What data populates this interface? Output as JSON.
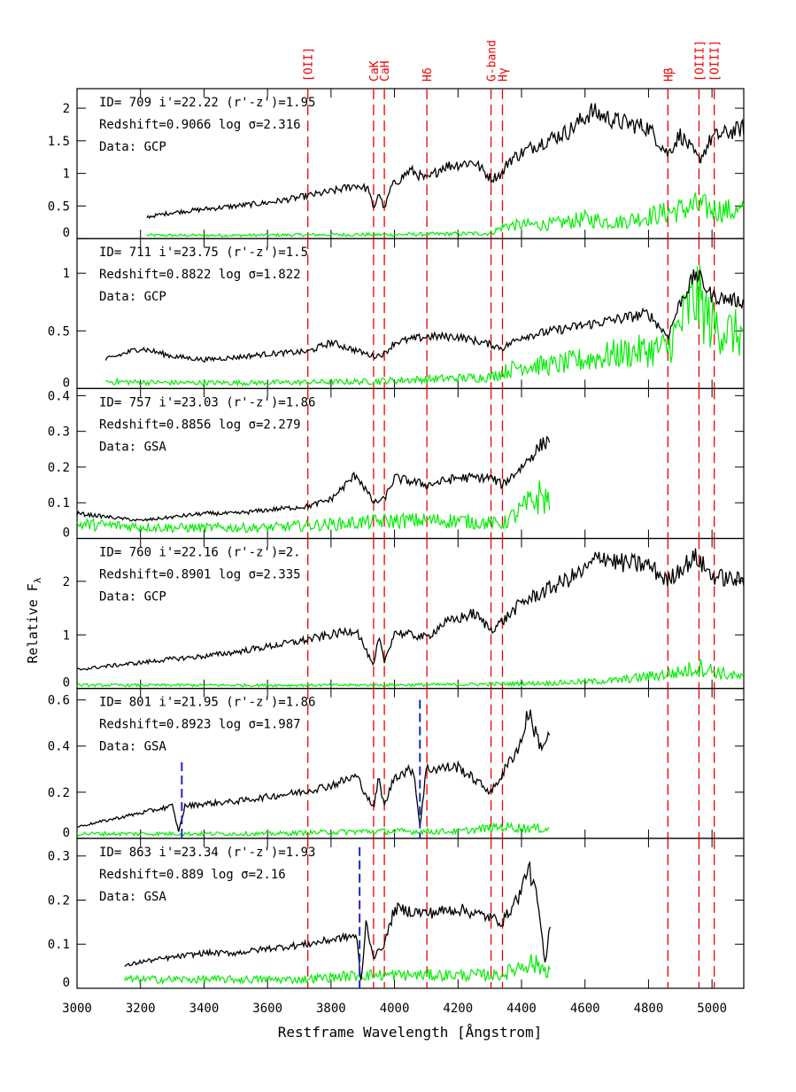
{
  "figure": {
    "ylabel": "Relative F",
    "ylabel_sub": "λ",
    "xlabel": "Restframe Wavelength [Ångstrom]"
  },
  "colors": {
    "spectrum": "#000000",
    "noise": "#00ee00",
    "lines": "#ee0000",
    "masked": "#2222cc",
    "frame": "#000000"
  },
  "chart_data": {
    "type": "line",
    "xlim": [
      3000,
      5100
    ],
    "x_ticks": [
      3000,
      3200,
      3400,
      3600,
      3800,
      4000,
      4200,
      4400,
      4600,
      4800,
      5000
    ],
    "x_tick_labels": [
      "3000",
      "3200",
      "3400",
      "3600",
      "3800",
      "4000",
      "4200",
      "4400",
      "4600",
      "4800",
      "5000"
    ],
    "lines": [
      {
        "label": "[OII]",
        "x": 3727
      },
      {
        "label": "CaK",
        "x": 3934
      },
      {
        "label": "CaH",
        "x": 3968
      },
      {
        "label": "Hδ",
        "x": 4102
      },
      {
        "label": "G-band",
        "x": 4304
      },
      {
        "label": "Hγ",
        "x": 4340
      },
      {
        "label": "Hβ",
        "x": 4861
      },
      {
        "label": "[OIII]",
        "x": 4959
      },
      {
        "label": "[OIII]",
        "x": 5007
      }
    ],
    "panels": [
      {
        "info": [
          "ID= 709   i'=22.22  (r'-z')=1.95",
          "Redshift=0.9066   log σ=2.316",
          "Data: GCP"
        ],
        "ylim": [
          0,
          2.3
        ],
        "yticks": [
          0,
          0.5,
          1,
          1.5,
          2
        ],
        "ytick_labels": [
          "0",
          "0.5",
          "1",
          "1.5",
          "2"
        ],
        "xrange": [
          3220,
          5100
        ],
        "spectrum": [
          [
            3220,
            0.33
          ],
          [
            3300,
            0.4
          ],
          [
            3400,
            0.45
          ],
          [
            3500,
            0.5
          ],
          [
            3600,
            0.55
          ],
          [
            3700,
            0.63
          ],
          [
            3730,
            0.66
          ],
          [
            3800,
            0.72
          ],
          [
            3880,
            0.82
          ],
          [
            3920,
            0.75
          ],
          [
            3934,
            0.42
          ],
          [
            3950,
            0.72
          ],
          [
            3968,
            0.45
          ],
          [
            3990,
            0.8
          ],
          [
            4050,
            1.05
          ],
          [
            4102,
            0.9
          ],
          [
            4150,
            1.1
          ],
          [
            4250,
            1.18
          ],
          [
            4304,
            0.92
          ],
          [
            4340,
            1.0
          ],
          [
            4360,
            1.2
          ],
          [
            4450,
            1.45
          ],
          [
            4550,
            1.65
          ],
          [
            4620,
            1.95
          ],
          [
            4700,
            1.8
          ],
          [
            4800,
            1.7
          ],
          [
            4861,
            1.3
          ],
          [
            4900,
            1.6
          ],
          [
            4959,
            1.2
          ],
          [
            5000,
            1.55
          ],
          [
            5100,
            1.7
          ]
        ],
        "noise": [
          [
            3220,
            0.05
          ],
          [
            3500,
            0.05
          ],
          [
            3800,
            0.06
          ],
          [
            4000,
            0.06
          ],
          [
            4300,
            0.08
          ],
          [
            4350,
            0.2
          ],
          [
            4500,
            0.22
          ],
          [
            4600,
            0.3
          ],
          [
            4700,
            0.25
          ],
          [
            4861,
            0.4
          ],
          [
            4950,
            0.5
          ],
          [
            5000,
            0.45
          ],
          [
            5100,
            0.4
          ]
        ],
        "masked": []
      },
      {
        "info": [
          "ID= 711   i'=23.75  (r'-z')=1.5",
          "Redshift=0.8822   log σ=1.822",
          "Data: GCP"
        ],
        "ylim": [
          0,
          1.3
        ],
        "yticks": [
          0,
          0.5,
          1
        ],
        "ytick_labels": [
          "0",
          "0.5",
          "1"
        ],
        "xrange": [
          3090,
          5100
        ],
        "spectrum": [
          [
            3090,
            0.25
          ],
          [
            3200,
            0.35
          ],
          [
            3300,
            0.28
          ],
          [
            3400,
            0.25
          ],
          [
            3500,
            0.27
          ],
          [
            3600,
            0.3
          ],
          [
            3727,
            0.32
          ],
          [
            3800,
            0.4
          ],
          [
            3934,
            0.28
          ],
          [
            3968,
            0.3
          ],
          [
            4000,
            0.4
          ],
          [
            4102,
            0.45
          ],
          [
            4200,
            0.45
          ],
          [
            4304,
            0.38
          ],
          [
            4340,
            0.35
          ],
          [
            4400,
            0.45
          ],
          [
            4500,
            0.5
          ],
          [
            4600,
            0.55
          ],
          [
            4700,
            0.6
          ],
          [
            4800,
            0.65
          ],
          [
            4861,
            0.45
          ],
          [
            4900,
            0.75
          ],
          [
            4950,
            1.0
          ],
          [
            5000,
            0.8
          ],
          [
            5100,
            0.75
          ]
        ],
        "noise": [
          [
            3090,
            0.06
          ],
          [
            3300,
            0.05
          ],
          [
            3600,
            0.05
          ],
          [
            3900,
            0.06
          ],
          [
            4100,
            0.08
          ],
          [
            4300,
            0.1
          ],
          [
            4400,
            0.2
          ],
          [
            4500,
            0.2
          ],
          [
            4600,
            0.25
          ],
          [
            4700,
            0.3
          ],
          [
            4861,
            0.35
          ],
          [
            4950,
            0.8
          ],
          [
            5000,
            0.55
          ],
          [
            5100,
            0.45
          ]
        ],
        "masked": []
      },
      {
        "info": [
          "ID= 757   i'=23.03  (r'-z')=1.86",
          "Redshift=0.8856   log σ=2.279",
          "Data: GSA"
        ],
        "ylim": [
          0,
          0.42
        ],
        "yticks": [
          0,
          0.1,
          0.2,
          0.3,
          0.4
        ],
        "ytick_labels": [
          "0",
          "0.1",
          "0.2",
          "0.3",
          "0.4"
        ],
        "xrange": [
          3000,
          4490
        ],
        "spectrum": [
          [
            3000,
            0.07
          ],
          [
            3100,
            0.06
          ],
          [
            3200,
            0.05
          ],
          [
            3300,
            0.06
          ],
          [
            3400,
            0.07
          ],
          [
            3500,
            0.07
          ],
          [
            3600,
            0.08
          ],
          [
            3727,
            0.09
          ],
          [
            3800,
            0.11
          ],
          [
            3880,
            0.18
          ],
          [
            3934,
            0.1
          ],
          [
            3968,
            0.11
          ],
          [
            4000,
            0.17
          ],
          [
            4102,
            0.15
          ],
          [
            4200,
            0.17
          ],
          [
            4304,
            0.17
          ],
          [
            4340,
            0.15
          ],
          [
            4400,
            0.2
          ],
          [
            4460,
            0.26
          ],
          [
            4490,
            0.28
          ]
        ],
        "noise": [
          [
            3000,
            0.04
          ],
          [
            3300,
            0.03
          ],
          [
            3600,
            0.03
          ],
          [
            3800,
            0.04
          ],
          [
            4000,
            0.05
          ],
          [
            4200,
            0.05
          ],
          [
            4340,
            0.04
          ],
          [
            4400,
            0.08
          ],
          [
            4460,
            0.12
          ],
          [
            4490,
            0.1
          ]
        ],
        "masked": []
      },
      {
        "info": [
          "ID= 760   i'=22.16  (r'-z')=2.",
          "Redshift=0.8901   log σ=2.335",
          "Data: GCP"
        ],
        "ylim": [
          0,
          2.8
        ],
        "yticks": [
          0,
          1,
          2
        ],
        "ytick_labels": [
          "0",
          "1",
          "2"
        ],
        "xrange": [
          3000,
          5100
        ],
        "spectrum": [
          [
            3000,
            0.35
          ],
          [
            3100,
            0.42
          ],
          [
            3200,
            0.48
          ],
          [
            3300,
            0.55
          ],
          [
            3400,
            0.6
          ],
          [
            3500,
            0.68
          ],
          [
            3600,
            0.78
          ],
          [
            3700,
            0.88
          ],
          [
            3800,
            1.0
          ],
          [
            3880,
            1.1
          ],
          [
            3934,
            0.4
          ],
          [
            3950,
            0.95
          ],
          [
            3968,
            0.5
          ],
          [
            4000,
            1.05
          ],
          [
            4102,
            0.95
          ],
          [
            4150,
            1.2
          ],
          [
            4250,
            1.4
          ],
          [
            4304,
            1.1
          ],
          [
            4340,
            1.25
          ],
          [
            4400,
            1.6
          ],
          [
            4500,
            1.9
          ],
          [
            4600,
            2.2
          ],
          [
            4650,
            2.5
          ],
          [
            4700,
            2.35
          ],
          [
            4800,
            2.3
          ],
          [
            4861,
            2.0
          ],
          [
            4900,
            2.25
          ],
          [
            4950,
            2.45
          ],
          [
            5000,
            2.1
          ],
          [
            5100,
            2.0
          ]
        ],
        "noise": [
          [
            3000,
            0.06
          ],
          [
            3400,
            0.06
          ],
          [
            3800,
            0.06
          ],
          [
            4200,
            0.07
          ],
          [
            4500,
            0.1
          ],
          [
            4700,
            0.15
          ],
          [
            4900,
            0.3
          ],
          [
            4960,
            0.4
          ],
          [
            5050,
            0.25
          ],
          [
            5100,
            0.2
          ]
        ],
        "masked": []
      },
      {
        "info": [
          "ID= 801   i'=21.95  (r'-z')=1.86",
          "Redshift=0.8923   log σ=1.987",
          "Data: GSA"
        ],
        "ylim": [
          0,
          0.65
        ],
        "yticks": [
          0,
          0.2,
          0.4,
          0.6
        ],
        "ytick_labels": [
          "0",
          "0.2",
          "0.4",
          "0.6"
        ],
        "xrange": [
          3000,
          4490
        ],
        "spectrum": [
          [
            3000,
            0.05
          ],
          [
            3100,
            0.08
          ],
          [
            3200,
            0.11
          ],
          [
            3300,
            0.14
          ],
          [
            3320,
            0.03
          ],
          [
            3340,
            0.14
          ],
          [
            3400,
            0.15
          ],
          [
            3500,
            0.16
          ],
          [
            3600,
            0.18
          ],
          [
            3700,
            0.2
          ],
          [
            3800,
            0.23
          ],
          [
            3880,
            0.27
          ],
          [
            3934,
            0.13
          ],
          [
            3950,
            0.26
          ],
          [
            3968,
            0.14
          ],
          [
            4000,
            0.27
          ],
          [
            4060,
            0.3
          ],
          [
            4080,
            0.05
          ],
          [
            4100,
            0.3
          ],
          [
            4200,
            0.31
          ],
          [
            4304,
            0.2
          ],
          [
            4340,
            0.28
          ],
          [
            4400,
            0.42
          ],
          [
            4420,
            0.55
          ],
          [
            4460,
            0.4
          ],
          [
            4490,
            0.44
          ]
        ],
        "noise": [
          [
            3000,
            0.02
          ],
          [
            3300,
            0.02
          ],
          [
            3600,
            0.02
          ],
          [
            3900,
            0.03
          ],
          [
            4200,
            0.03
          ],
          [
            4340,
            0.05
          ],
          [
            4490,
            0.04
          ]
        ],
        "masked": [
          {
            "x": 3330,
            "y0": 0.0,
            "y1": 0.33
          },
          {
            "x": 4080,
            "y0": 0.0,
            "y1": 0.6
          }
        ]
      },
      {
        "info": [
          "ID= 863   i'=23.34  (r'-z')=1.93",
          "Redshift=0.889   log σ=2.16",
          "Data: GSA"
        ],
        "ylim": [
          0,
          0.34
        ],
        "yticks": [
          0,
          0.1,
          0.2,
          0.3
        ],
        "ytick_labels": [
          "0",
          "0.1",
          "0.2",
          "0.3"
        ],
        "xrange": [
          3150,
          4490
        ],
        "spectrum": [
          [
            3150,
            0.05
          ],
          [
            3200,
            0.06
          ],
          [
            3300,
            0.07
          ],
          [
            3400,
            0.08
          ],
          [
            3500,
            0.08
          ],
          [
            3600,
            0.09
          ],
          [
            3727,
            0.1
          ],
          [
            3800,
            0.11
          ],
          [
            3880,
            0.12
          ],
          [
            3895,
            0.01
          ],
          [
            3910,
            0.15
          ],
          [
            3934,
            0.07
          ],
          [
            3968,
            0.1
          ],
          [
            4000,
            0.18
          ],
          [
            4102,
            0.17
          ],
          [
            4200,
            0.18
          ],
          [
            4304,
            0.16
          ],
          [
            4340,
            0.15
          ],
          [
            4400,
            0.22
          ],
          [
            4420,
            0.28
          ],
          [
            4450,
            0.2
          ],
          [
            4475,
            0.05
          ],
          [
            4490,
            0.15
          ]
        ],
        "noise": [
          [
            3150,
            0.02
          ],
          [
            3400,
            0.02
          ],
          [
            3700,
            0.02
          ],
          [
            3900,
            0.03
          ],
          [
            4200,
            0.03
          ],
          [
            4340,
            0.03
          ],
          [
            4420,
            0.06
          ],
          [
            4490,
            0.04
          ]
        ],
        "masked": [
          {
            "x": 3890,
            "y0": 0.0,
            "y1": 0.32
          }
        ]
      }
    ]
  }
}
